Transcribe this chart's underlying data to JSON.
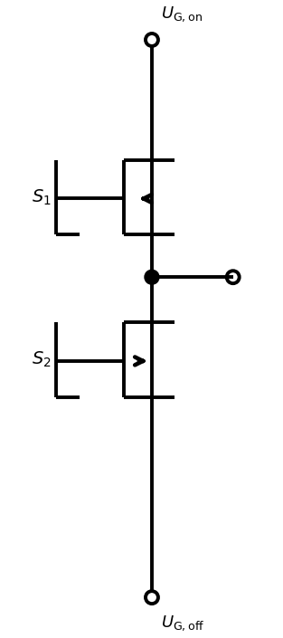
{
  "bg_color": "#ffffff",
  "line_color": "#000000",
  "line_width": 2.8,
  "figsize": [
    3.13,
    7.05
  ],
  "dpi": 100,
  "label_fontsize": 14
}
